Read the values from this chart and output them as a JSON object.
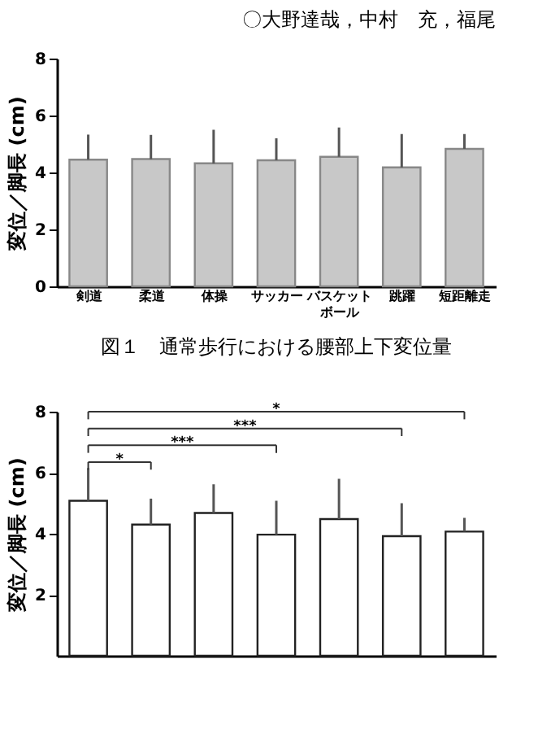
{
  "chart_data": [
    {
      "type": "bar",
      "title": "〇大野達哉，中村　充，福尾",
      "ylabel": "変位／脚長 (cm)",
      "annotations": [
        "図１　通常歩行における腰部上下変位量"
      ],
      "categories": [
        "剣道",
        "柔道",
        "体操",
        "サッカー",
        "バスケットボール",
        "跳躍",
        "短距離走"
      ],
      "values": [
        4.45,
        4.47,
        4.32,
        4.43,
        4.55,
        4.18,
        4.83
      ],
      "errors": [
        [
          4.45,
          5.33
        ],
        [
          4.47,
          5.32
        ],
        [
          4.32,
          5.5
        ],
        [
          4.43,
          5.2
        ],
        [
          4.55,
          5.58
        ],
        [
          4.18,
          5.35
        ],
        [
          4.83,
          5.35
        ]
      ],
      "color": "#c8c8c8",
      "ylim": [
        0,
        8
      ],
      "yticks": [
        0,
        2,
        4,
        6,
        8
      ],
      "grid": false
    },
    {
      "type": "bar",
      "ylabel": "変位／脚長 (cm)",
      "annotations": [
        "*",
        "***",
        "***",
        "*"
      ],
      "categories": [
        null,
        null,
        null,
        null,
        null,
        null,
        null
      ],
      "values": [
        5.08,
        4.3,
        4.68,
        3.97,
        4.48,
        3.92,
        4.07
      ],
      "errors": [
        [
          5.08,
          6.15
        ],
        [
          4.3,
          5.15
        ],
        [
          4.68,
          5.62
        ],
        [
          3.97,
          5.08
        ],
        [
          4.48,
          5.8
        ],
        [
          3.92,
          5.0
        ],
        [
          4.07,
          4.52
        ]
      ],
      "color": "#ffffff",
      "ylim": [
        0,
        8
      ],
      "yticks": [
        2,
        4,
        6,
        8
      ],
      "grid": false
    }
  ]
}
